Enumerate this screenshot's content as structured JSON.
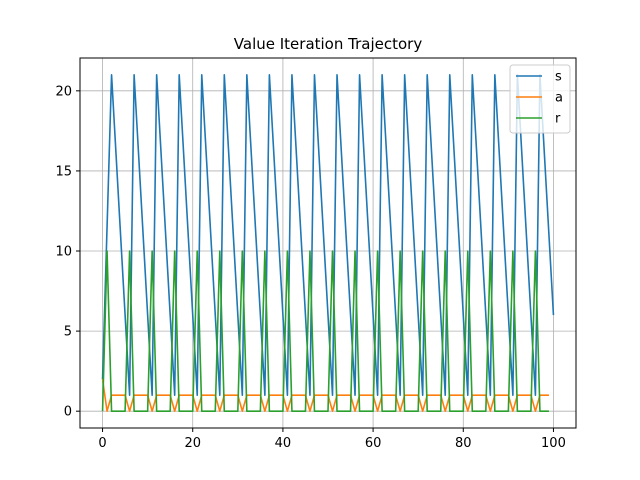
{
  "chart_data": {
    "type": "line",
    "title": "Value Iteration Trajectory",
    "xlabel": "",
    "ylabel": "",
    "xlim": [
      -5,
      105
    ],
    "ylim": [
      -1.05,
      22.05
    ],
    "xticks": [
      0,
      20,
      40,
      60,
      80,
      100
    ],
    "yticks": [
      0,
      5,
      10,
      15,
      20
    ],
    "grid": true,
    "legend_placement": "top-right",
    "series": [
      {
        "name": "s",
        "color": "#1f77b4",
        "x": [
          0,
          2,
          6,
          7,
          11,
          12,
          16,
          17,
          21,
          22,
          26,
          27,
          31,
          32,
          36,
          37,
          41,
          42,
          46,
          47,
          51,
          52,
          56,
          57,
          61,
          62,
          66,
          67,
          71,
          72,
          76,
          77,
          81,
          82,
          86,
          87,
          91,
          92,
          96,
          97,
          100
        ],
        "y": [
          2,
          21,
          1,
          21,
          1,
          21,
          1,
          21,
          1,
          21,
          1,
          21,
          1,
          21,
          1,
          21,
          1,
          21,
          1,
          21,
          1,
          21,
          1,
          21,
          1,
          21,
          1,
          21,
          1,
          21,
          1,
          21,
          1,
          21,
          1,
          21,
          1,
          21,
          1,
          21,
          6
        ]
      },
      {
        "name": "a",
        "color": "#ff7f0e",
        "x": [
          0,
          1,
          2,
          5,
          6,
          7,
          10,
          11,
          12,
          15,
          16,
          17,
          20,
          21,
          22,
          25,
          26,
          27,
          30,
          31,
          32,
          35,
          36,
          37,
          40,
          41,
          42,
          45,
          46,
          47,
          50,
          51,
          52,
          55,
          56,
          57,
          60,
          61,
          62,
          65,
          66,
          67,
          70,
          71,
          72,
          75,
          76,
          77,
          80,
          81,
          82,
          85,
          86,
          87,
          90,
          91,
          92,
          95,
          96,
          97,
          99
        ],
        "y": [
          2,
          0,
          1,
          1,
          0,
          1,
          1,
          0,
          1,
          1,
          0,
          1,
          1,
          0,
          1,
          1,
          0,
          1,
          1,
          0,
          1,
          1,
          0,
          1,
          1,
          0,
          1,
          1,
          0,
          1,
          1,
          0,
          1,
          1,
          0,
          1,
          1,
          0,
          1,
          1,
          0,
          1,
          1,
          0,
          1,
          1,
          0,
          1,
          1,
          0,
          1,
          1,
          0,
          1,
          1,
          0,
          1,
          1,
          0,
          1,
          1
        ]
      },
      {
        "name": "r",
        "color": "#2ca02c",
        "x": [
          0,
          1,
          2,
          5,
          6,
          7,
          10,
          11,
          12,
          15,
          16,
          17,
          20,
          21,
          22,
          25,
          26,
          27,
          30,
          31,
          32,
          35,
          36,
          37,
          40,
          41,
          42,
          45,
          46,
          47,
          50,
          51,
          52,
          55,
          56,
          57,
          60,
          61,
          62,
          65,
          66,
          67,
          70,
          71,
          72,
          75,
          76,
          77,
          80,
          81,
          82,
          85,
          86,
          87,
          90,
          91,
          92,
          95,
          96,
          97,
          99
        ],
        "y": [
          0,
          10,
          0,
          0,
          10,
          0,
          0,
          10,
          0,
          0,
          10,
          0,
          0,
          10,
          0,
          0,
          10,
          0,
          0,
          10,
          0,
          0,
          10,
          0,
          0,
          10,
          0,
          0,
          10,
          0,
          0,
          10,
          0,
          0,
          10,
          0,
          0,
          10,
          0,
          0,
          10,
          0,
          0,
          10,
          0,
          0,
          10,
          0,
          0,
          10,
          0,
          0,
          10,
          0,
          0,
          10,
          0,
          0,
          10,
          0,
          0
        ]
      }
    ]
  }
}
